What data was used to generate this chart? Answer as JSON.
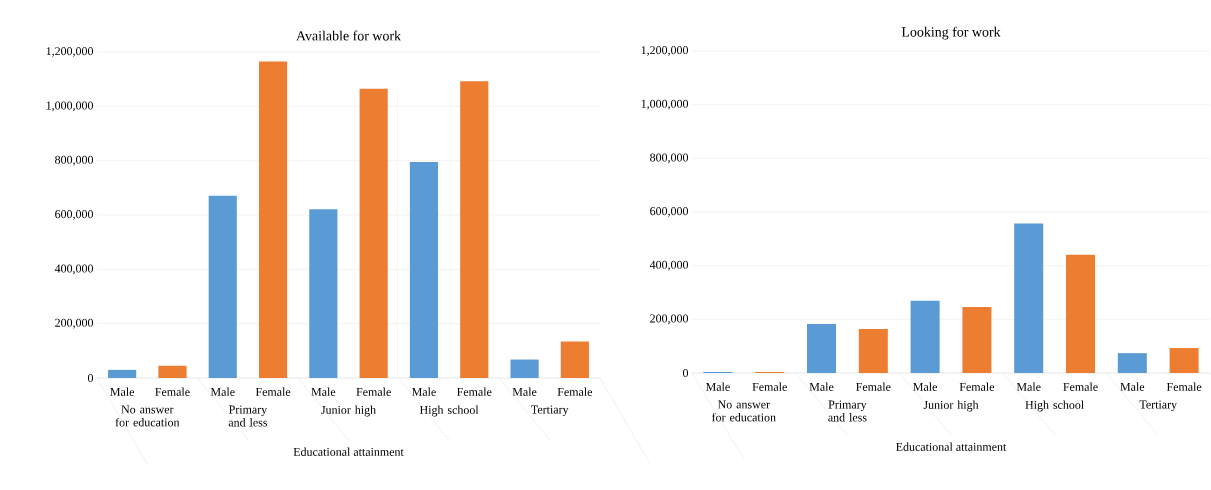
{
  "chart_data": [
    {
      "type": "bar",
      "title": "Available for work",
      "xlabel": "Educational attainment",
      "categories": [
        "No answer for education",
        "Primary and less",
        "Junior high",
        "High school",
        "Tertiary"
      ],
      "series": [
        {
          "name": "Male",
          "color": "#5b9bd5",
          "values": [
            30000,
            671000,
            621000,
            795000,
            68000
          ]
        },
        {
          "name": "Female",
          "color": "#ed7d31",
          "values": [
            45000,
            1165000,
            1065000,
            1092000,
            134000
          ]
        }
      ],
      "ylim": [
        0,
        1200000
      ],
      "yticks": [
        0,
        {
          "value": 200000,
          "label": "200,000"
        },
        {
          "value": 400000,
          "label": "400,000"
        },
        {
          "value": 600000,
          "label": "600,000"
        },
        {
          "value": 800000,
          "label": "800,000"
        },
        {
          "value": 1000000,
          "label": "1,000,000"
        },
        {
          "value": 1200000,
          "label": "1,200,000"
        }
      ],
      "grid": "y"
    },
    {
      "type": "bar",
      "title": "Looking for work",
      "xlabel": "Educational attainment",
      "categories": [
        "No answer for education",
        "Primary and less",
        "Junior high",
        "High school",
        "Tertiary"
      ],
      "series": [
        {
          "name": "Male",
          "color": "#5b9bd5",
          "values": [
            4000,
            183000,
            269000,
            557000,
            74000
          ]
        },
        {
          "name": "Female",
          "color": "#ed7d31",
          "values": [
            4000,
            164000,
            246000,
            441000,
            93000
          ]
        }
      ],
      "ylim": [
        0,
        1200000
      ],
      "yticks": [
        0,
        {
          "value": 200000,
          "label": "200,000"
        },
        {
          "value": 400000,
          "label": "400,000"
        },
        {
          "value": 600000,
          "label": "600,000"
        },
        {
          "value": 800000,
          "label": "800,000"
        },
        {
          "value": 1000000,
          "label": "1,000,000"
        },
        {
          "value": 1200000,
          "label": "1,200,000"
        }
      ],
      "grid": "y"
    }
  ]
}
